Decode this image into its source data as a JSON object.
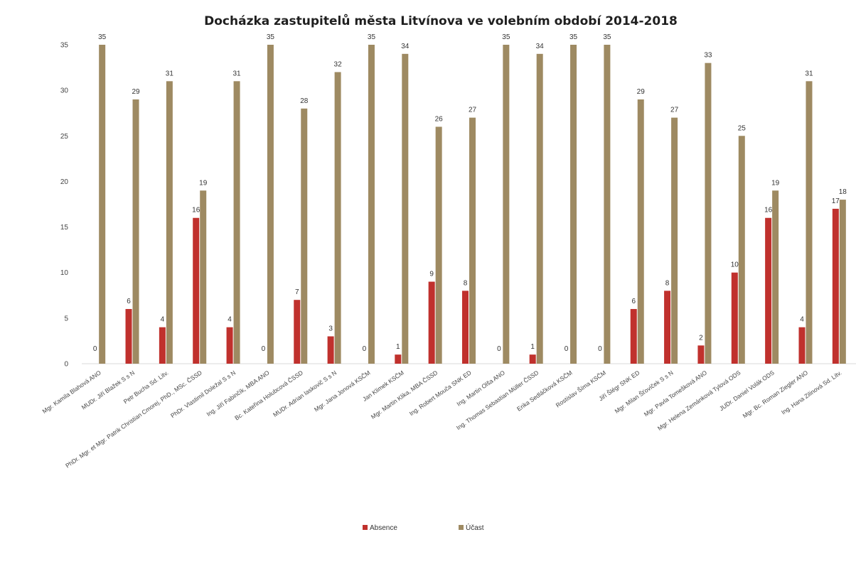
{
  "chart_data": {
    "type": "bar",
    "title": "Docházka zastupitelů města Litvínova ve volebním období 2014-2018",
    "xlabel": "",
    "ylabel": "",
    "ylim": [
      0,
      35
    ],
    "yticks": [
      0,
      5,
      10,
      15,
      20,
      25,
      30,
      35
    ],
    "grid": false,
    "legend_position": "bottom",
    "categories": [
      "Mgr. Kamila Blahová ANO",
      "MUDr. Jiří Blažek S s N",
      "Petr Bucha Sd. Litv.",
      "PhDr. Mgr. et Mgr. Patrik Christian Cmorej, PhD., MSc. ČSSD",
      "PhDr. Vlastimil Doležal S s N",
      "Ing. Jiří Fabinčík, MBA ANO",
      "Bc. Kateřina Holubcová ČSSD",
      "MUDr. Adrian Iaskovič S s N",
      "Mgr. Jana Jonová KSČM",
      "Jan Klimek KSČM",
      "Mgr. Martin Klika, MBA ČSSD",
      "Ing. Robert Mouča SNK ED",
      "Ing. Martin Olša ANO",
      "Ing. Thomas Sebastian Müller ČSSD",
      "Erika Sedláčková KSČM",
      "Rostislav Šíma KSČM",
      "Jiří Šlégr SNK ED",
      "Mgr. Milan Šťovíček S s N",
      "Mgr. Pavla Tomešková ANO",
      "Mgr. Helena Zemánková Tylová ODS",
      "JUDr. Daniel Volák ODS",
      "Mgr. Bc. Roman Ziegler ANO",
      "Ing. Hana Zilinová Sd. Litv."
    ],
    "series": [
      {
        "name": "Absence",
        "color": "#c0312d",
        "values": [
          0,
          6,
          4,
          16,
          4,
          0,
          7,
          3,
          0,
          1,
          9,
          8,
          0,
          1,
          0,
          0,
          6,
          8,
          2,
          10,
          16,
          4,
          17
        ]
      },
      {
        "name": "Účast",
        "color": "#9e8a62",
        "values": [
          35,
          29,
          31,
          19,
          31,
          35,
          28,
          32,
          35,
          34,
          26,
          27,
          35,
          34,
          35,
          35,
          29,
          27,
          33,
          25,
          19,
          31,
          18
        ]
      }
    ]
  }
}
